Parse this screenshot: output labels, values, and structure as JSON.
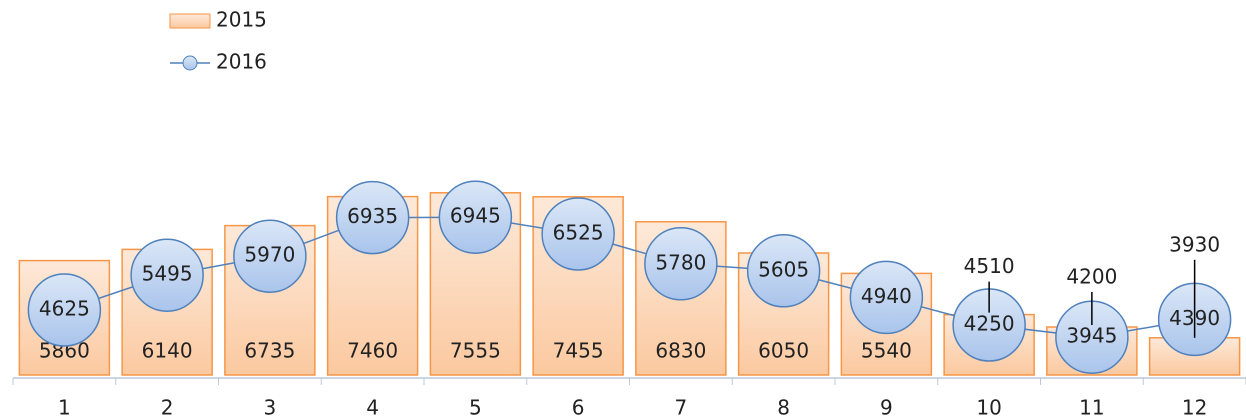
{
  "chart_data": {
    "type": "bar_line",
    "categories": [
      "1",
      "2",
      "3",
      "4",
      "5",
      "6",
      "7",
      "8",
      "9",
      "10",
      "11",
      "12"
    ],
    "series": [
      {
        "name": "2015",
        "type": "bar",
        "color": "#f79646",
        "values": [
          5860,
          6140,
          6735,
          7460,
          7555,
          7455,
          6830,
          6050,
          5540,
          4510,
          4200,
          3930
        ]
      },
      {
        "name": "2016",
        "type": "line",
        "color": "#4f81bd",
        "values": [
          4625,
          5495,
          5970,
          6935,
          6945,
          6525,
          5780,
          5605,
          4940,
          4250,
          3945,
          4390
        ]
      }
    ],
    "ylim": [
      3000,
      10000
    ],
    "legend": "top-left"
  }
}
